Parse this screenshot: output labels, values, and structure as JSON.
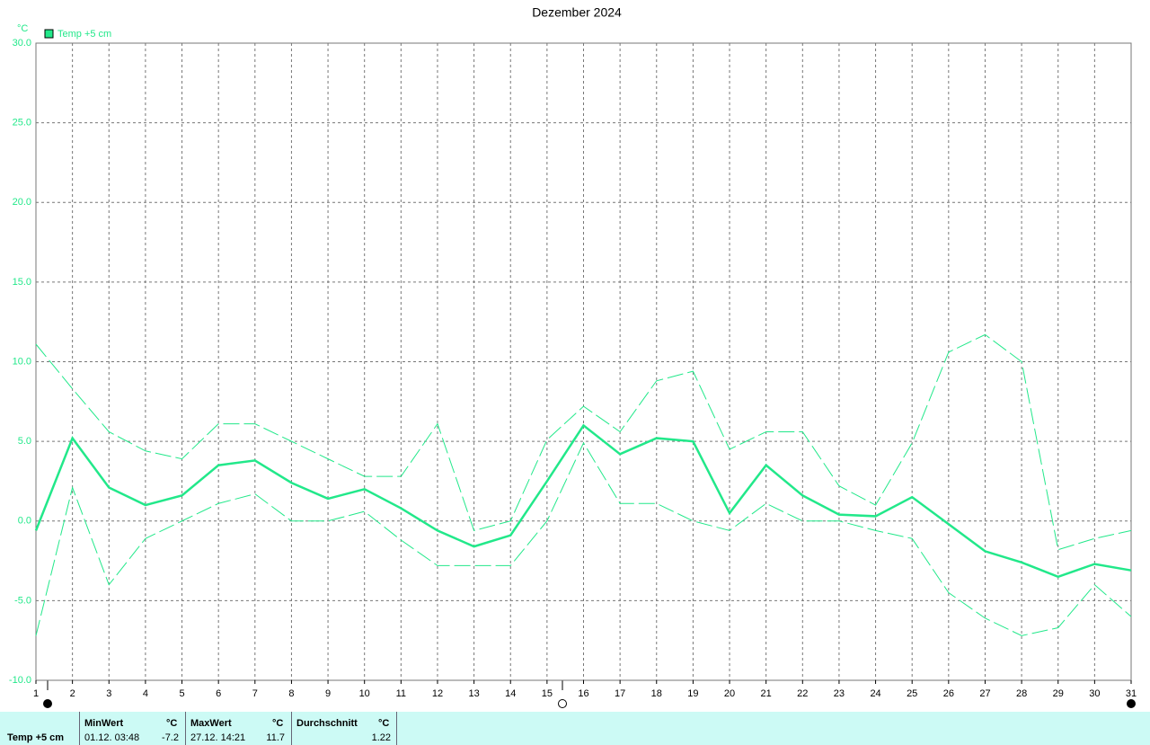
{
  "chart_data": {
    "type": "line",
    "title": "Dezember 2024",
    "y_unit": "°C",
    "x": [
      1,
      2,
      3,
      4,
      5,
      6,
      7,
      8,
      9,
      10,
      11,
      12,
      13,
      14,
      15,
      16,
      17,
      18,
      19,
      20,
      21,
      22,
      23,
      24,
      25,
      26,
      27,
      28,
      29,
      30,
      31
    ],
    "xlim": [
      1,
      31
    ],
    "series": [
      {
        "name": "Temp +5 cm",
        "color": "#22e88a",
        "values": [
          -0.6,
          5.2,
          2.1,
          1.0,
          1.6,
          3.5,
          3.8,
          2.4,
          1.4,
          2.0,
          0.8,
          -0.6,
          -1.6,
          -0.9,
          2.5,
          6.0,
          4.2,
          5.2,
          5.0,
          0.5,
          3.5,
          1.6,
          0.4,
          0.3,
          1.5,
          -0.2,
          -1.9,
          -2.6,
          -3.5,
          -2.7,
          -3.1
        ],
        "max": [
          11.1,
          8.3,
          5.6,
          4.4,
          3.9,
          6.1,
          6.1,
          5.0,
          3.9,
          2.8,
          2.8,
          6.1,
          -0.6,
          0.0,
          5.1,
          7.2,
          5.6,
          8.8,
          9.4,
          4.5,
          5.6,
          5.6,
          2.2,
          1.0,
          4.9,
          10.6,
          11.7,
          10.0,
          -1.8,
          -1.1,
          -0.6
        ],
        "min": [
          -7.2,
          2.1,
          -4.0,
          -1.1,
          0.0,
          1.1,
          1.7,
          0.0,
          0.0,
          0.6,
          -1.2,
          -2.8,
          -2.8,
          -2.8,
          0.0,
          4.9,
          1.1,
          1.1,
          0.0,
          -0.6,
          1.1,
          0.0,
          0.0,
          -0.6,
          -1.1,
          -4.5,
          -6.1,
          -7.2,
          -6.7,
          -4.0,
          -6.0
        ]
      }
    ],
    "ylim": [
      -10,
      30
    ],
    "yticks": [
      {
        "value": -10,
        "label": "-10.0"
      },
      {
        "value": -5,
        "label": "-5.0"
      },
      {
        "value": 0,
        "label": "0.0"
      },
      {
        "value": 5,
        "label": "5.0"
      },
      {
        "value": 10,
        "label": "10.0"
      },
      {
        "value": 15,
        "label": "15.0"
      },
      {
        "value": 20,
        "label": "20.0"
      },
      {
        "value": 25,
        "label": "25.0"
      },
      {
        "value": 30,
        "label": "30.0"
      }
    ],
    "grid": true
  },
  "table": {
    "label": "Temp +5 cm",
    "min": {
      "header": "MinWert",
      "unit": "°C",
      "time": "01.12.  03:48",
      "value": "-7.2"
    },
    "max": {
      "header": "MaxWert",
      "unit": "°C",
      "time": "27.12.  14:21",
      "value": "11.7"
    },
    "avg": {
      "header": "Durchschnitt",
      "unit": "°C",
      "value": "1.22"
    }
  }
}
